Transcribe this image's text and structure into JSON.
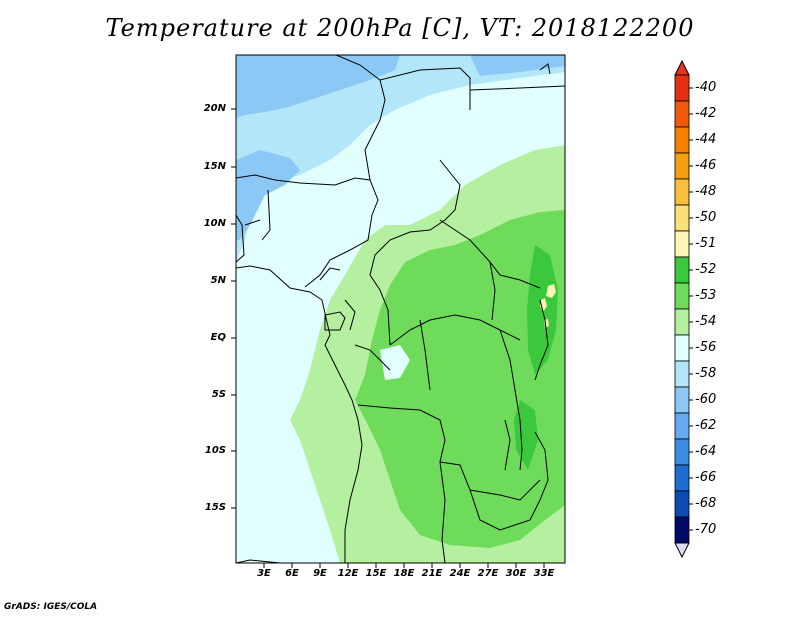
{
  "title": "Temperature at 200hPa [C], VT: 2018122200",
  "credit": "GrADS: IGES/COLA",
  "chart_data": {
    "type": "heatmap",
    "variable": "Temperature",
    "level": "200hPa",
    "units": "C",
    "valid_time": "2018122200",
    "lon_range": [
      0,
      35
    ],
    "lat_range": [
      -20,
      24
    ],
    "x_ticks": [
      "3E",
      "6E",
      "9E",
      "12E",
      "15E",
      "18E",
      "21E",
      "24E",
      "27E",
      "30E",
      "33E"
    ],
    "x_tick_values": [
      3,
      6,
      9,
      12,
      15,
      18,
      21,
      24,
      27,
      30,
      33
    ],
    "y_ticks": [
      "20N",
      "15N",
      "10N",
      "5N",
      "EQ",
      "5S",
      "10S",
      "15S"
    ],
    "y_tick_values": [
      20,
      15,
      10,
      5,
      0,
      -5,
      -10,
      -15
    ],
    "colorbar": {
      "levels": [
        "-40",
        "-42",
        "-44",
        "-46",
        "-48",
        "-50",
        "-51",
        "-52",
        "-53",
        "-54",
        "-56",
        "-58",
        "-60",
        "-62",
        "-64",
        "-66",
        "-68",
        "-70"
      ],
      "colors": [
        "#e63014",
        "#f05a0a",
        "#f58200",
        "#f5a014",
        "#f8c03c",
        "#fbe07a",
        "#fdf5b4",
        "#3cc83c",
        "#6edc5a",
        "#b4f0a0",
        "#e1ffff",
        "#b4e6fa",
        "#8cc8f5",
        "#64aaf0",
        "#3c8ce6",
        "#1e6ed2",
        "#0a4bb4",
        "#000a64"
      ],
      "under_color": "#dcdcf5",
      "over_color": "#e6321e"
    }
  }
}
